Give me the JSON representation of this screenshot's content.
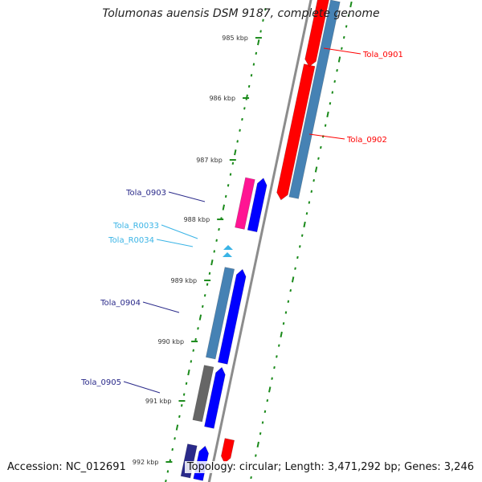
{
  "map": {
    "title": "Tolumonas auensis DSM 9187, complete genome",
    "accession_label": "Accession: NC_012691",
    "info_label": "Topology: circular; Length: 3,471,292 bp; Genes: 3,246"
  },
  "colors": {
    "red": "#ff0000",
    "steelblue": "#4682b4",
    "blue": "#0000ff",
    "pink": "#ff1493",
    "gray": "#666666",
    "navy": "#2a2a8a",
    "cyan": "#3ab4e6",
    "tick_green": "#1a8a1a",
    "backbone": "#8c8c8c"
  },
  "ticks": [
    {
      "label": "985 kbp",
      "kbp": 985
    },
    {
      "label": "986 kbp",
      "kbp": 986
    },
    {
      "label": "987 kbp",
      "kbp": 987
    },
    {
      "label": "988 kbp",
      "kbp": 988
    },
    {
      "label": "989 kbp",
      "kbp": 989
    },
    {
      "label": "990 kbp",
      "kbp": 990
    },
    {
      "label": "991 kbp",
      "kbp": 991
    },
    {
      "label": "992 kbp",
      "kbp": 992
    }
  ],
  "genes": [
    {
      "name": "Tola_0901",
      "color_key": "red"
    },
    {
      "name": "Tola_0902",
      "color_key": "red"
    },
    {
      "name": "Tola_0903",
      "color_key": "blue"
    },
    {
      "name": "Tola_R0033",
      "color_key": "cyan"
    },
    {
      "name": "Tola_R0034",
      "color_key": "cyan"
    },
    {
      "name": "Tola_0904",
      "color_key": "blue"
    },
    {
      "name": "Tola_0905",
      "color_key": "blue"
    }
  ]
}
